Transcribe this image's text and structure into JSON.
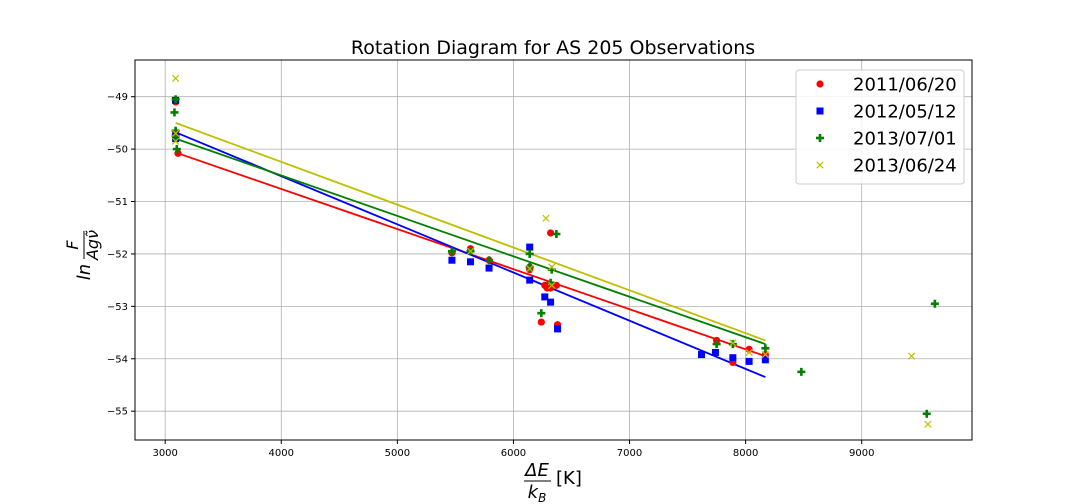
{
  "chart_data": {
    "type": "scatter",
    "title": "Rotation Diagram for AS 205 Observations",
    "xlabel": {
      "frac_num": "ΔE",
      "frac_den": "k_B",
      "unit": "[K]"
    },
    "ylabel": {
      "prefix": "ln",
      "frac_num": "F",
      "frac_den": "Agν̃"
    },
    "xlim": [
      2740,
      9950
    ],
    "ylim": [
      -55.55,
      -48.3
    ],
    "xticks": [
      3000,
      4000,
      5000,
      6000,
      7000,
      8000,
      9000
    ],
    "yticks": [
      -55,
      -54,
      -53,
      -52,
      -51,
      -50,
      -49
    ],
    "xtick_labels": [
      "3000",
      "4000",
      "5000",
      "6000",
      "7000",
      "8000",
      "9000"
    ],
    "ytick_labels": [
      "−55",
      "−54",
      "−53",
      "−52",
      "−51",
      "−50",
      "−49"
    ],
    "grid": true,
    "legend_position": "top-right",
    "series": [
      {
        "name": "2011/06/20",
        "color": "#ff0000",
        "marker": "circle",
        "points": [
          [
            3090,
            -49.1
          ],
          [
            3090,
            -49.7
          ],
          [
            3090,
            -49.8
          ],
          [
            3110,
            -50.08
          ],
          [
            5470,
            -51.98
          ],
          [
            5630,
            -51.9
          ],
          [
            5790,
            -52.12
          ],
          [
            6140,
            -52.25
          ],
          [
            6140,
            -52.3
          ],
          [
            6240,
            -53.3
          ],
          [
            6270,
            -52.6
          ],
          [
            6290,
            -52.65
          ],
          [
            6320,
            -52.65
          ],
          [
            6320,
            -51.6
          ],
          [
            6370,
            -52.6
          ],
          [
            6380,
            -53.35
          ],
          [
            7750,
            -53.65
          ],
          [
            7890,
            -54.07
          ],
          [
            8030,
            -53.82
          ],
          [
            8170,
            -53.92
          ]
        ],
        "fit": [
          [
            3110,
            -50.08
          ],
          [
            8170,
            -53.95
          ]
        ]
      },
      {
        "name": "2012/05/12",
        "color": "#0000ff",
        "marker": "square",
        "points": [
          [
            3090,
            -49.07
          ],
          [
            3090,
            -49.75
          ],
          [
            3090,
            -49.8
          ],
          [
            5470,
            -52.12
          ],
          [
            5630,
            -52.15
          ],
          [
            5790,
            -52.27
          ],
          [
            6140,
            -51.87
          ],
          [
            6140,
            -52.5
          ],
          [
            6270,
            -52.82
          ],
          [
            6320,
            -52.92
          ],
          [
            6380,
            -53.43
          ],
          [
            7620,
            -53.92
          ],
          [
            7740,
            -53.88
          ],
          [
            7890,
            -53.98
          ],
          [
            8030,
            -54.05
          ],
          [
            8170,
            -54.02
          ]
        ],
        "fit": [
          [
            3090,
            -49.68
          ],
          [
            8170,
            -54.35
          ]
        ]
      },
      {
        "name": "2013/07/01",
        "color": "#008000",
        "marker": "plus",
        "points": [
          [
            3080,
            -49.3
          ],
          [
            3090,
            -49.05
          ],
          [
            3090,
            -49.65
          ],
          [
            3090,
            -49.75
          ],
          [
            3100,
            -50.0
          ],
          [
            5470,
            -51.95
          ],
          [
            5630,
            -51.95
          ],
          [
            5790,
            -52.12
          ],
          [
            6140,
            -52.0
          ],
          [
            6140,
            -52.25
          ],
          [
            6240,
            -53.13
          ],
          [
            6320,
            -52.55
          ],
          [
            6330,
            -52.3
          ],
          [
            6370,
            -51.62
          ],
          [
            7750,
            -53.72
          ],
          [
            7890,
            -53.72
          ],
          [
            8170,
            -53.8
          ],
          [
            8480,
            -54.25
          ],
          [
            9560,
            -55.05
          ],
          [
            9630,
            -52.95
          ]
        ],
        "fit": [
          [
            3090,
            -49.8
          ],
          [
            8170,
            -53.72
          ]
        ]
      },
      {
        "name": "2013/06/24",
        "color": "#bfbf00",
        "marker": "x",
        "points": [
          [
            3090,
            -48.65
          ],
          [
            3090,
            -49.7
          ],
          [
            3090,
            -49.85
          ],
          [
            5630,
            -51.95
          ],
          [
            6140,
            -52.28
          ],
          [
            6280,
            -51.32
          ],
          [
            6330,
            -52.25
          ],
          [
            6330,
            -52.6
          ],
          [
            7890,
            -53.7
          ],
          [
            8030,
            -53.88
          ],
          [
            8170,
            -53.92
          ],
          [
            9430,
            -53.95
          ],
          [
            9570,
            -55.25
          ]
        ],
        "fit": [
          [
            3090,
            -49.5
          ],
          [
            8170,
            -53.65
          ]
        ]
      }
    ]
  }
}
